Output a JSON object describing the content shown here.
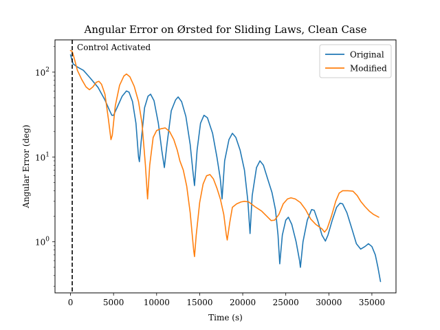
{
  "chart_data": {
    "type": "line",
    "title": "Angular Error on Ørsted for Sliding Laws, Clean Case",
    "xlabel": "Time (s)",
    "ylabel": "Angular Error (deg)",
    "xlim": [
      -1800,
      37800
    ],
    "ylim": [
      0.25,
      240
    ],
    "yscale": "log",
    "grid": false,
    "legend_position": "top-right",
    "x_ticks": [
      0,
      5000,
      10000,
      15000,
      20000,
      25000,
      30000,
      35000
    ],
    "x_tick_labels": [
      "0",
      "5000",
      "10000",
      "15000",
      "20000",
      "25000",
      "30000",
      "35000"
    ],
    "y_ticks": [
      1,
      10,
      100
    ],
    "y_tick_bases": [
      "10",
      "10",
      "10"
    ],
    "y_tick_exponents": [
      "0",
      "1",
      "2"
    ],
    "annotations": [
      {
        "type": "vline",
        "x": 200,
        "style": "dashed",
        "color": "#000000",
        "label": "Control Activated"
      }
    ],
    "series": [
      {
        "name": "Original",
        "color": "#1f77b4",
        "points": [
          [
            0,
            160
          ],
          [
            300,
            125
          ],
          [
            800,
            115
          ],
          [
            1500,
            105
          ],
          [
            2300,
            85
          ],
          [
            3200,
            66
          ],
          [
            4000,
            47
          ],
          [
            4500,
            36
          ],
          [
            4800,
            31
          ],
          [
            5000,
            31
          ],
          [
            5400,
            38
          ],
          [
            6000,
            52
          ],
          [
            6500,
            60
          ],
          [
            6800,
            58
          ],
          [
            7200,
            45
          ],
          [
            7600,
            25
          ],
          [
            7900,
            10
          ],
          [
            8000,
            8.8
          ],
          [
            8200,
            15
          ],
          [
            8600,
            38
          ],
          [
            9000,
            52
          ],
          [
            9300,
            55
          ],
          [
            9700,
            46
          ],
          [
            10200,
            25
          ],
          [
            10600,
            12
          ],
          [
            10900,
            7.5
          ],
          [
            11200,
            14
          ],
          [
            11700,
            35
          ],
          [
            12200,
            47
          ],
          [
            12500,
            51
          ],
          [
            12900,
            45
          ],
          [
            13400,
            30
          ],
          [
            13900,
            14
          ],
          [
            14200,
            7
          ],
          [
            14400,
            4.6
          ],
          [
            14700,
            12
          ],
          [
            15100,
            25
          ],
          [
            15500,
            31
          ],
          [
            15900,
            29
          ],
          [
            16500,
            19
          ],
          [
            17000,
            10
          ],
          [
            17400,
            5.5
          ],
          [
            17600,
            3.2
          ],
          [
            17900,
            9
          ],
          [
            18400,
            16
          ],
          [
            18800,
            19
          ],
          [
            19200,
            17
          ],
          [
            19700,
            12
          ],
          [
            20200,
            7
          ],
          [
            20600,
            3
          ],
          [
            20850,
            1.25
          ],
          [
            21100,
            3.5
          ],
          [
            21600,
            7.5
          ],
          [
            22000,
            9
          ],
          [
            22400,
            8
          ],
          [
            22900,
            5.5
          ],
          [
            23400,
            3.8
          ],
          [
            23800,
            2.4
          ],
          [
            24100,
            1.2
          ],
          [
            24300,
            0.55
          ],
          [
            24600,
            1.2
          ],
          [
            25000,
            1.8
          ],
          [
            25300,
            1.95
          ],
          [
            25700,
            1.6
          ],
          [
            26200,
            1
          ],
          [
            26600,
            0.6
          ],
          [
            26700,
            0.5
          ],
          [
            27000,
            1
          ],
          [
            27500,
            1.8
          ],
          [
            28000,
            2.4
          ],
          [
            28300,
            2.35
          ],
          [
            28700,
            1.8
          ],
          [
            29200,
            1.2
          ],
          [
            29600,
            1.02
          ],
          [
            29900,
            1.2
          ],
          [
            30400,
            1.8
          ],
          [
            30900,
            2.55
          ],
          [
            31300,
            2.85
          ],
          [
            31600,
            2.8
          ],
          [
            32100,
            2.2
          ],
          [
            32700,
            1.4
          ],
          [
            33200,
            0.95
          ],
          [
            33700,
            0.82
          ],
          [
            34200,
            0.88
          ],
          [
            34600,
            0.95
          ],
          [
            35000,
            0.88
          ],
          [
            35400,
            0.7
          ],
          [
            35700,
            0.5
          ],
          [
            36000,
            0.34
          ]
        ]
      },
      {
        "name": "Modified",
        "color": "#ff7f0e",
        "points": [
          [
            0,
            180
          ],
          [
            200,
            175
          ],
          [
            400,
            150
          ],
          [
            800,
            105
          ],
          [
            1300,
            82
          ],
          [
            1800,
            67
          ],
          [
            2200,
            62
          ],
          [
            2600,
            67
          ],
          [
            3000,
            76
          ],
          [
            3300,
            78
          ],
          [
            3600,
            72
          ],
          [
            4000,
            55
          ],
          [
            4400,
            28
          ],
          [
            4700,
            16
          ],
          [
            4850,
            18
          ],
          [
            5200,
            40
          ],
          [
            5700,
            70
          ],
          [
            6200,
            90
          ],
          [
            6500,
            95
          ],
          [
            6900,
            88
          ],
          [
            7400,
            68
          ],
          [
            7900,
            45
          ],
          [
            8300,
            25
          ],
          [
            8700,
            8
          ],
          [
            8950,
            3.2
          ],
          [
            9200,
            8
          ],
          [
            9600,
            17
          ],
          [
            10000,
            20.5
          ],
          [
            10500,
            21.5
          ],
          [
            11000,
            22
          ],
          [
            11500,
            20
          ],
          [
            12000,
            16
          ],
          [
            12400,
            12
          ],
          [
            12700,
            9
          ],
          [
            13100,
            7
          ],
          [
            13500,
            4.5
          ],
          [
            13900,
            2.2
          ],
          [
            14300,
            0.8
          ],
          [
            14400,
            0.67
          ],
          [
            14600,
            1.2
          ],
          [
            15000,
            2.9
          ],
          [
            15400,
            4.8
          ],
          [
            15800,
            6
          ],
          [
            16200,
            6.2
          ],
          [
            16600,
            5.5
          ],
          [
            17000,
            4.3
          ],
          [
            17400,
            3.2
          ],
          [
            17800,
            2.1
          ],
          [
            18100,
            1.2
          ],
          [
            18200,
            1.05
          ],
          [
            18500,
            1.7
          ],
          [
            18800,
            2.55
          ],
          [
            19300,
            2.8
          ],
          [
            19800,
            2.95
          ],
          [
            20200,
            3
          ],
          [
            20700,
            2.95
          ],
          [
            21400,
            2.6
          ],
          [
            22200,
            2.3
          ],
          [
            22800,
            2
          ],
          [
            23300,
            1.78
          ],
          [
            23700,
            1.8
          ],
          [
            24200,
            2.1
          ],
          [
            24700,
            2.8
          ],
          [
            25200,
            3.2
          ],
          [
            25600,
            3.3
          ],
          [
            26100,
            3.2
          ],
          [
            26700,
            2.9
          ],
          [
            27300,
            2.4
          ],
          [
            27900,
            1.85
          ],
          [
            28500,
            1.6
          ],
          [
            29200,
            1.42
          ],
          [
            29500,
            1.3
          ],
          [
            29800,
            1.42
          ],
          [
            30300,
            2
          ],
          [
            30800,
            3
          ],
          [
            31200,
            3.75
          ],
          [
            31600,
            4
          ],
          [
            32200,
            4
          ],
          [
            32800,
            3.95
          ],
          [
            33300,
            3.5
          ],
          [
            33700,
            3
          ],
          [
            34200,
            2.6
          ],
          [
            34700,
            2.3
          ],
          [
            35200,
            2.1
          ],
          [
            35800,
            1.95
          ]
        ]
      }
    ]
  }
}
